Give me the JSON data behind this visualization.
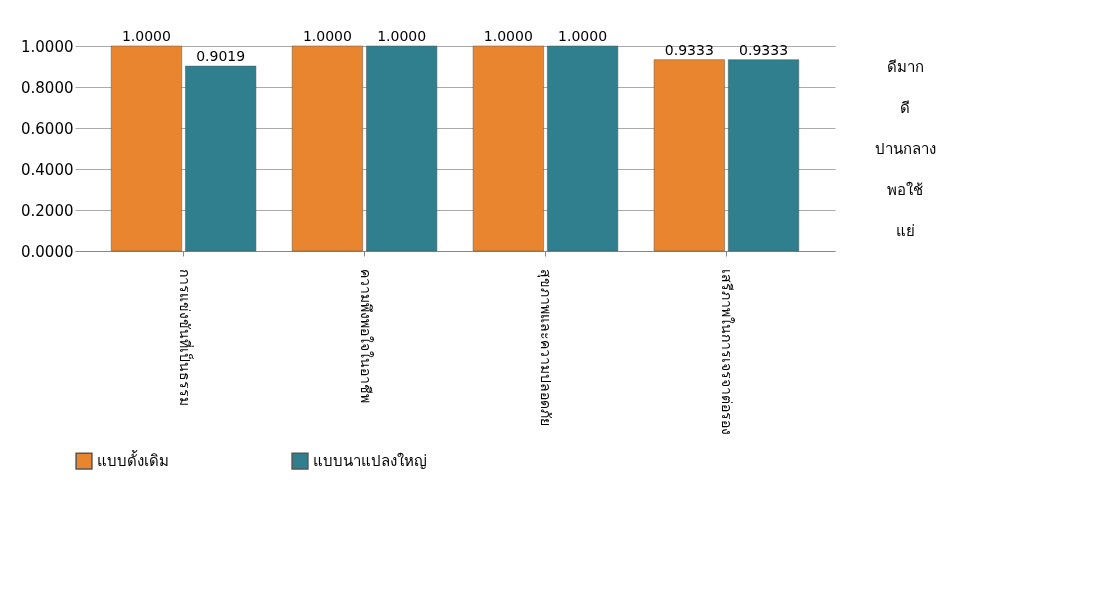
{
  "chart_data": {
    "type": "bar",
    "categories": [
      "การแข่งขันที่เป็นธรรม",
      "ความพึงพอใจในอาชีพ",
      "สุขภาพและความปลอดภัย",
      "เสรีภาพในการเจรจาต่อรอง"
    ],
    "series": [
      {
        "name": "แบบดั้งเดิม",
        "color": "#e8852e",
        "values": [
          1.0,
          1.0,
          1.0,
          0.9333
        ],
        "value_labels": [
          "1.0000",
          "1.0000",
          "1.0000",
          "0.9333"
        ]
      },
      {
        "name": "แบบนาแปลงใหญ่",
        "color": "#2f7f8e",
        "values": [
          0.9019,
          1.0,
          1.0,
          0.9333
        ],
        "value_labels": [
          "0.9019",
          "1.0000",
          "1.0000",
          "0.9333"
        ]
      }
    ],
    "ylim": [
      0,
      1
    ],
    "yticks": [
      {
        "value": 0,
        "label": "0.0000"
      },
      {
        "value": 0.2,
        "label": "0.2000"
      },
      {
        "value": 0.4,
        "label": "0.4000"
      },
      {
        "value": 0.6,
        "label": "0.6000"
      },
      {
        "value": 0.8,
        "label": "0.8000"
      },
      {
        "value": 1,
        "label": "1.0000"
      }
    ],
    "grid": "y",
    "legend": "bottom",
    "annotations": [
      "ดีมาก",
      "ดี",
      "ปานกลาง",
      "พอใช้",
      "แย่"
    ]
  }
}
